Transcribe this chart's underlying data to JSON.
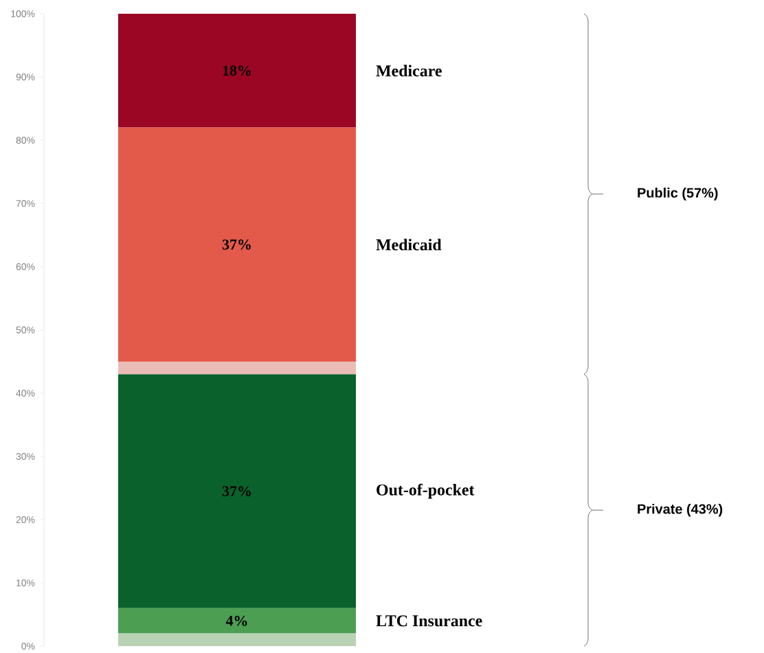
{
  "chart_data": {
    "type": "bar",
    "stacked": true,
    "categories": [
      null
    ],
    "series": [
      {
        "color": "#b8d2b3",
        "values": [
          2
        ],
        "value_labels": [
          null
        ]
      },
      {
        "name": "LTC Insurance",
        "color": "#4c9e53",
        "values": [
          4
        ],
        "value_labels": [
          "4%"
        ]
      },
      {
        "name": "Out-of-pocket",
        "color": "#0a612b",
        "values": [
          37
        ],
        "value_labels": [
          "37%"
        ]
      },
      {
        "color": "#ebbcb6",
        "values": [
          2
        ],
        "value_labels": [
          null
        ]
      },
      {
        "name": "Medicaid",
        "color": "#e35a4a",
        "values": [
          37
        ],
        "value_labels": [
          "37%"
        ]
      },
      {
        "name": "Medicare",
        "color": "#9b0625",
        "values": [
          18
        ],
        "value_labels": [
          "18%"
        ]
      }
    ],
    "ylim": [
      0,
      100
    ],
    "yticks": [
      {
        "value": 0,
        "label": "0%"
      },
      {
        "value": 10,
        "label": "10%"
      },
      {
        "value": 20,
        "label": "20%"
      },
      {
        "value": 30,
        "label": "30%"
      },
      {
        "value": 40,
        "label": "40%"
      },
      {
        "value": 50,
        "label": "50%"
      },
      {
        "value": 60,
        "label": "60%"
      },
      {
        "value": 70,
        "label": "70%"
      },
      {
        "value": 80,
        "label": "80%"
      },
      {
        "value": 90,
        "label": "90%"
      },
      {
        "value": 100,
        "label": "100%"
      }
    ],
    "annotations": [
      "Public (57%)",
      "Private (43%)"
    ],
    "grid": false
  }
}
